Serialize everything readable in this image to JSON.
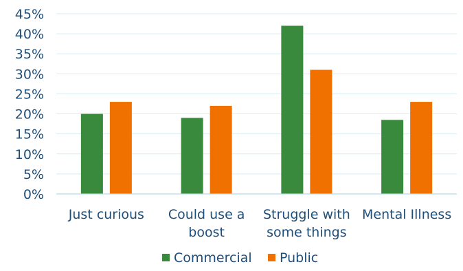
{
  "chart_data": {
    "type": "bar",
    "title": "",
    "xlabel": "",
    "ylabel": "",
    "categories": [
      [
        "Just curious"
      ],
      [
        "Could use a",
        "boost"
      ],
      [
        "Struggle with",
        "some things"
      ],
      [
        "Mental Illness"
      ]
    ],
    "series": [
      {
        "name": "Commercial",
        "color": "#3a8a3d",
        "values": [
          0.2,
          0.19,
          0.42,
          0.185
        ]
      },
      {
        "name": "Public",
        "color": "#f07000",
        "values": [
          0.23,
          0.22,
          0.31,
          0.23
        ]
      }
    ],
    "ylim": [
      0,
      0.45
    ],
    "yticks": [
      0,
      0.05,
      0.1,
      0.15,
      0.2,
      0.25,
      0.3,
      0.35,
      0.4,
      0.45
    ],
    "ytick_labels": [
      "0%",
      "5%",
      "10%",
      "15%",
      "20%",
      "25%",
      "30%",
      "35%",
      "40%",
      "45%"
    ],
    "grid": true,
    "legend_position": "bottom"
  }
}
